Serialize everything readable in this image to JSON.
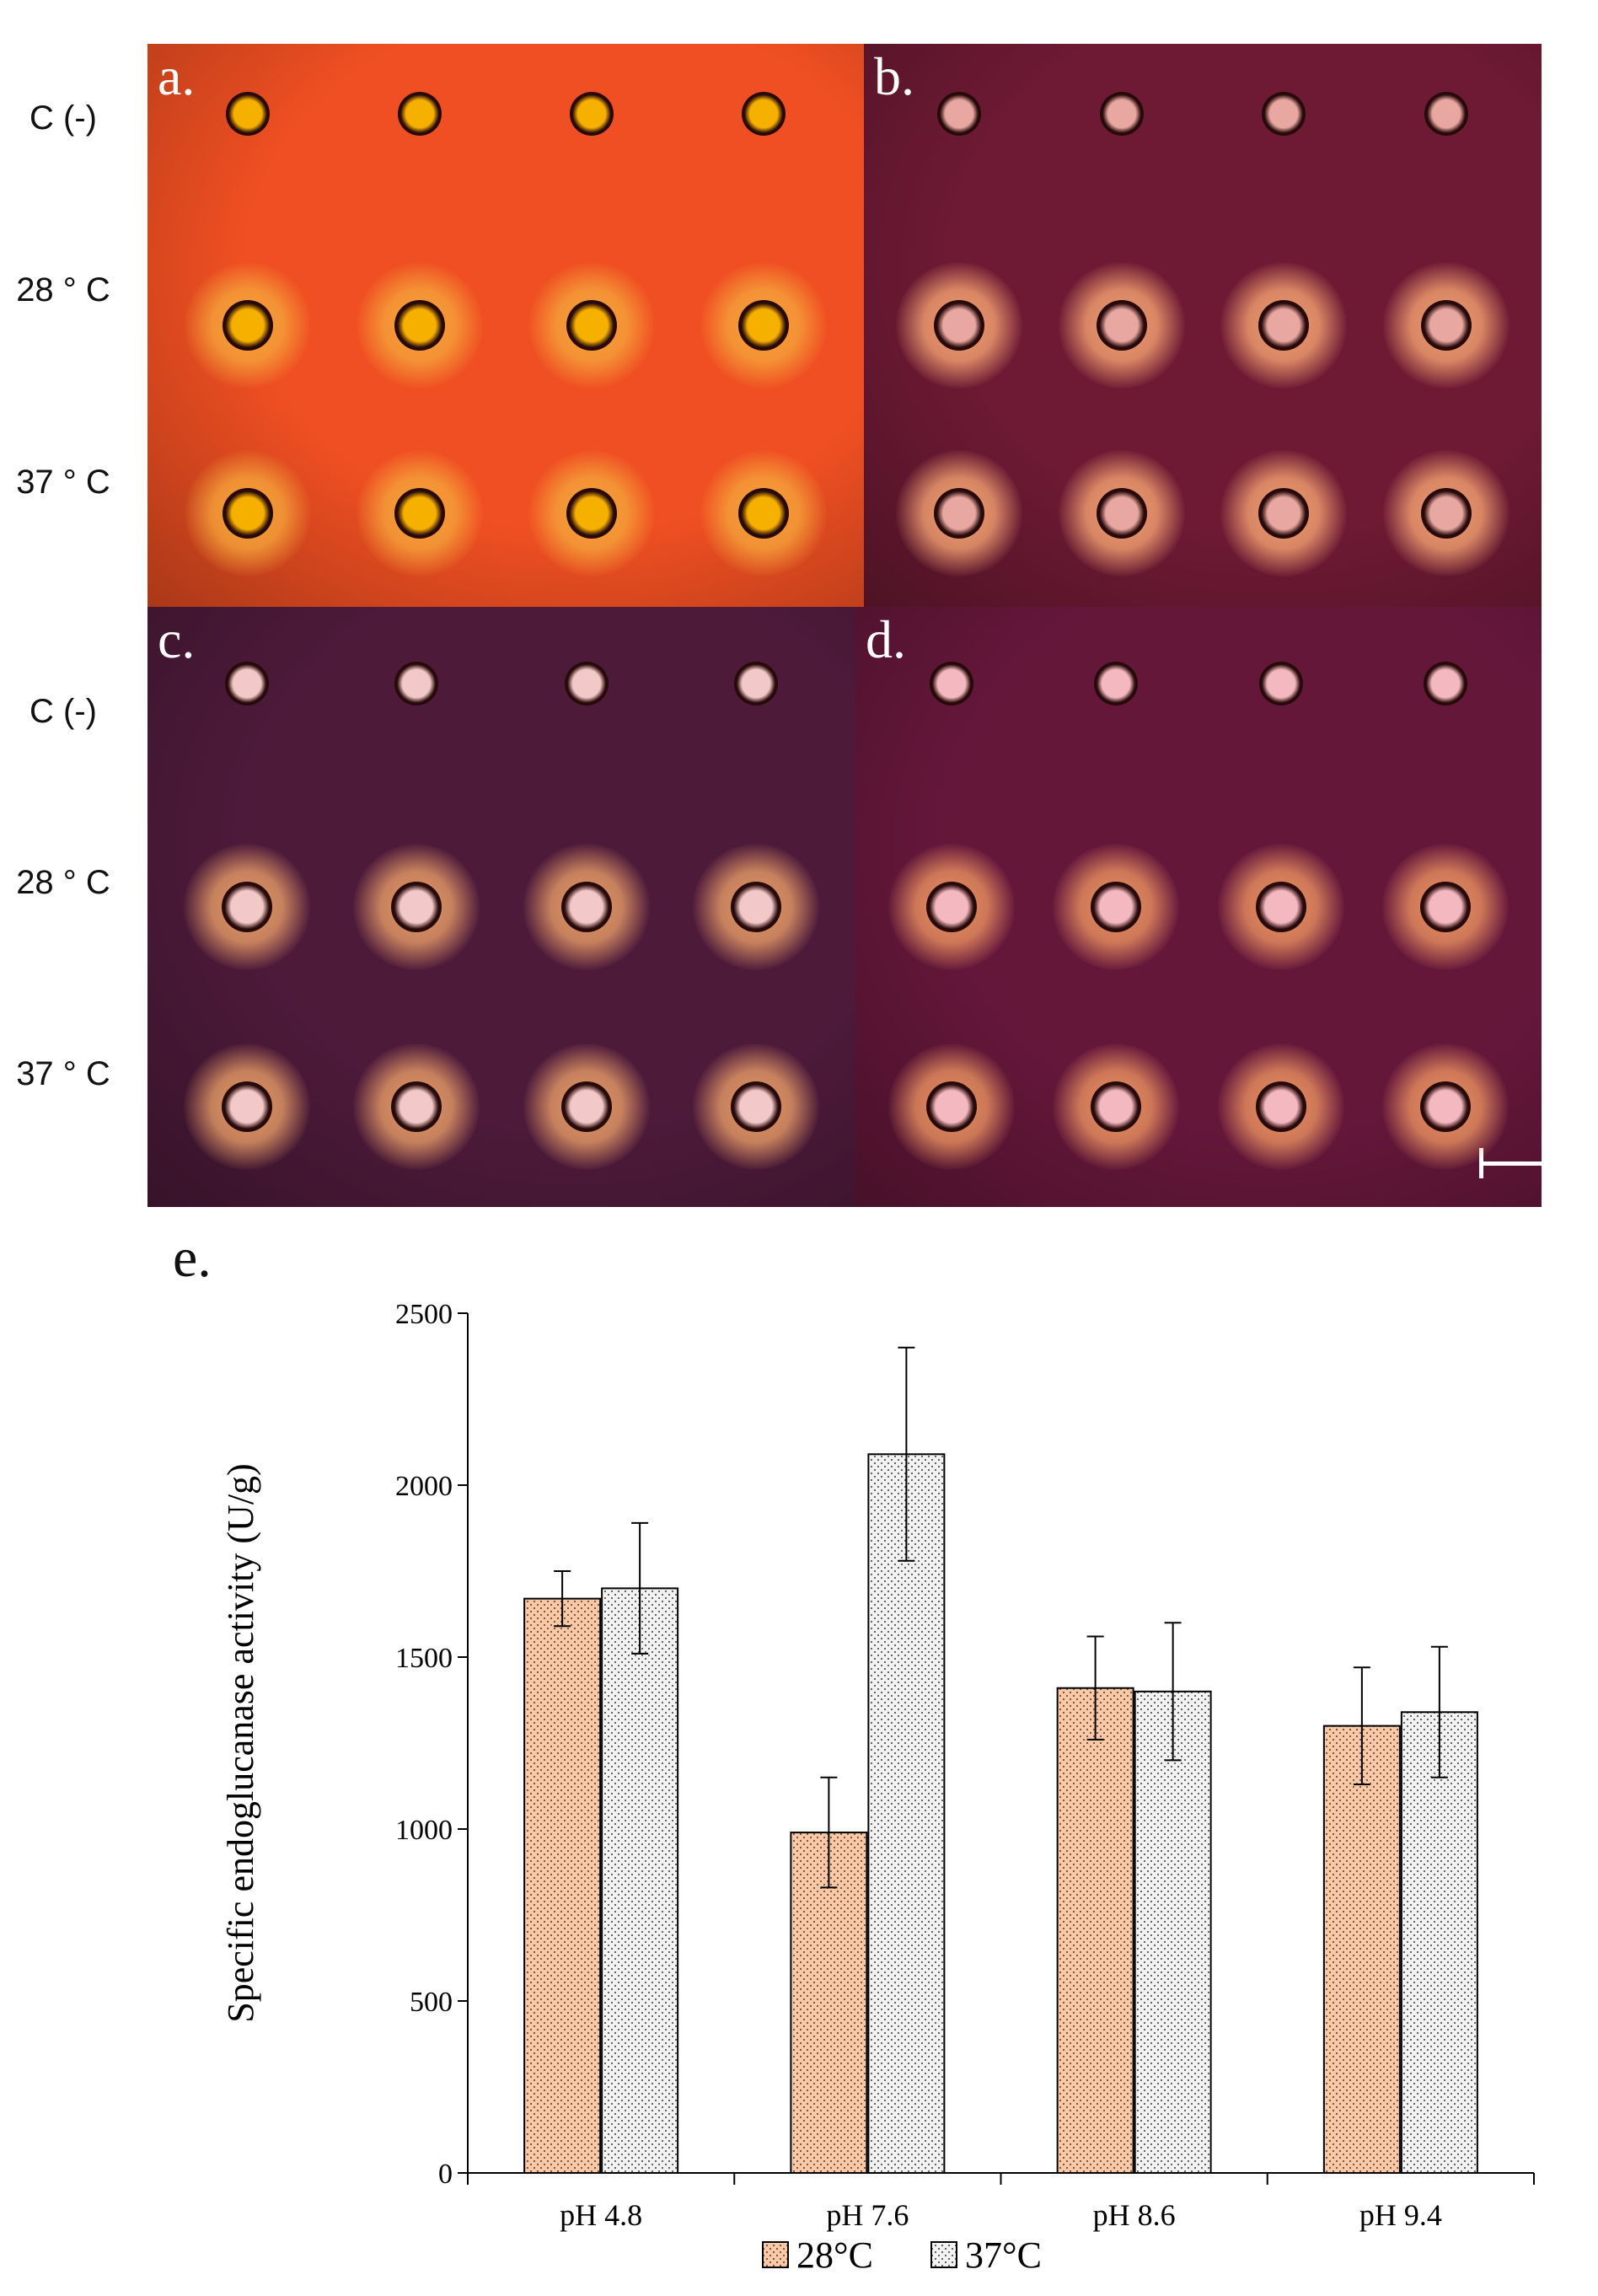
{
  "row_labels": [
    "C (-)",
    "28 ° C",
    "37 ° C"
  ],
  "panels": [
    {
      "letter": "a.",
      "plate_color": "#ef4f22",
      "well_color": "#f6b000",
      "halo_color": "#f5a23a",
      "grid": false
    },
    {
      "letter": "b.",
      "plate_color": "#6e1a34",
      "well_color": "#e8a7a0",
      "halo_color": "#f2a070",
      "grid": true
    },
    {
      "letter": "c.",
      "plate_color": "#4d1a3a",
      "well_color": "#f3c8c8",
      "halo_color": "#e49a66",
      "grid": true
    },
    {
      "letter": "d.",
      "plate_color": "#65173a",
      "well_color": "#f4b8c0",
      "halo_color": "#e89060",
      "grid": true
    }
  ],
  "chart_data": {
    "type": "bar",
    "panel_label": "e.",
    "categories": [
      "pH 4.8",
      "pH 7.6",
      "pH 8.6",
      "pH 9.4"
    ],
    "series": [
      {
        "name": "28°C",
        "values": [
          1670,
          990,
          1410,
          1300
        ],
        "error": [
          80,
          160,
          150,
          170
        ],
        "color": "#f6c9a8"
      },
      {
        "name": "37°C",
        "values": [
          1700,
          2090,
          1400,
          1340
        ],
        "error": [
          190,
          310,
          200,
          190
        ],
        "color": "#eeeeee"
      }
    ],
    "ylabel": "Specific endoglucanase activity (U/g)",
    "xlabel": "",
    "ylim": [
      0,
      2500
    ],
    "yticks": [
      0,
      500,
      1000,
      1500,
      2000,
      2500
    ],
    "legend": "bottom"
  }
}
